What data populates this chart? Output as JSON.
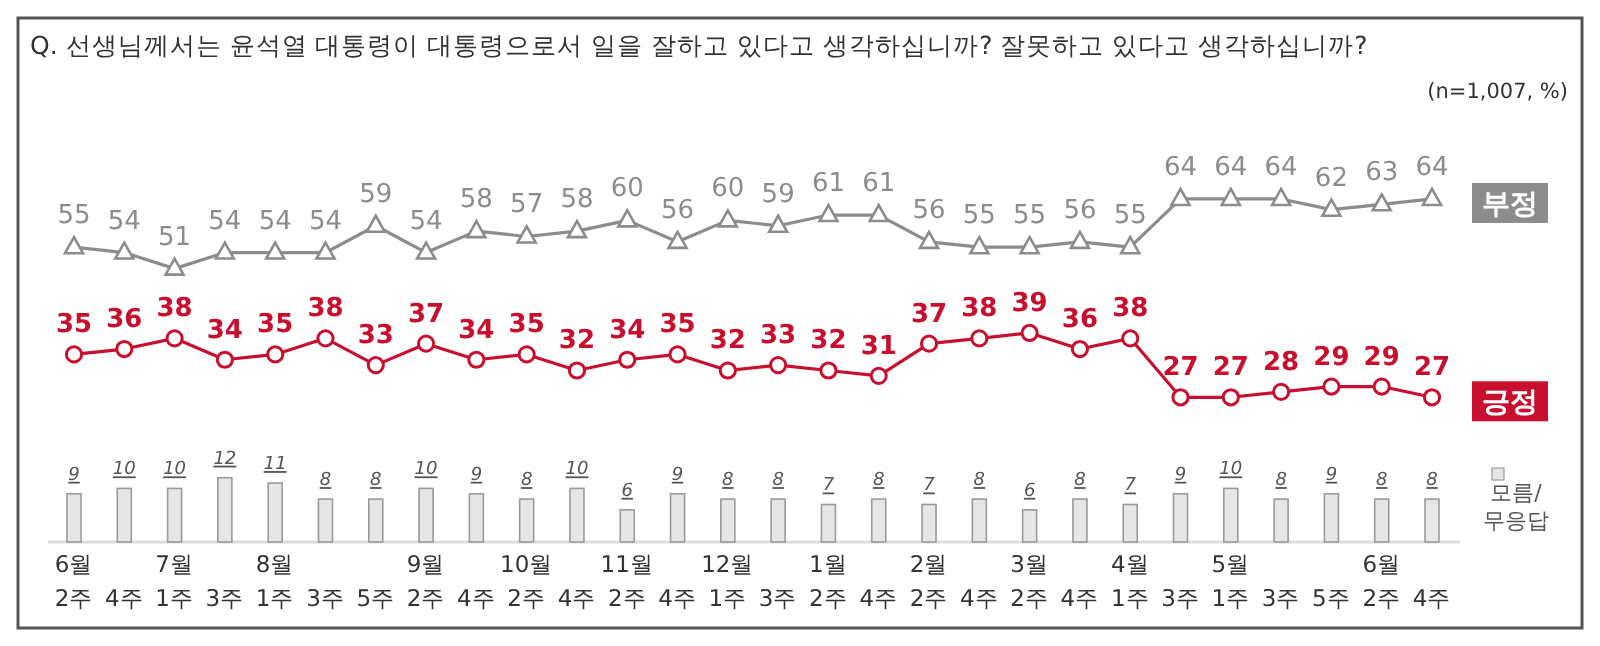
{
  "chart_data": {
    "type": "line",
    "title": "Q. 선생님께서는 윤석열 대통령이 대통령으로서 일을 잘하고 있다고 생각하십니까? 잘못하고 있다고 생각하십니까?",
    "subtitle": "(n=1,007, %)",
    "categories": [
      "6월\n2주",
      "4주",
      "7월\n1주",
      "3주",
      "8월\n1주",
      "3주",
      "5주",
      "9월\n2주",
      "4주",
      "10월\n2주",
      "4주",
      "11월\n2주",
      "4주",
      "12월\n1주",
      "3주",
      "1월\n2주",
      "4주",
      "2월\n2주",
      "4주",
      "3월\n2주",
      "4주",
      "4월\n1주",
      "3주",
      "5월\n1주",
      "3주",
      "5주",
      "6월\n2주",
      "4주"
    ],
    "series": [
      {
        "name": "부정",
        "color": "#8c8c8c",
        "marker": "triangle",
        "values": [
          55,
          54,
          51,
          54,
          54,
          54,
          59,
          54,
          58,
          57,
          58,
          60,
          56,
          60,
          59,
          61,
          61,
          56,
          55,
          55,
          56,
          55,
          64,
          64,
          64,
          62,
          63,
          64
        ]
      },
      {
        "name": "긍정",
        "color": "#c8102e",
        "marker": "circle",
        "values": [
          35,
          36,
          38,
          34,
          35,
          38,
          33,
          37,
          34,
          35,
          32,
          34,
          35,
          32,
          33,
          32,
          31,
          37,
          38,
          39,
          36,
          38,
          27,
          27,
          28,
          29,
          29,
          27
        ]
      },
      {
        "name": "모름/무응답",
        "type": "bar",
        "color": "#e6e6e6",
        "values": [
          9,
          10,
          10,
          12,
          11,
          8,
          8,
          10,
          9,
          8,
          10,
          6,
          9,
          8,
          8,
          7,
          8,
          7,
          8,
          6,
          8,
          7,
          9,
          10,
          8,
          9,
          8,
          8
        ]
      }
    ],
    "tick_labels": "x",
    "data_labels": true,
    "legend": "right"
  }
}
